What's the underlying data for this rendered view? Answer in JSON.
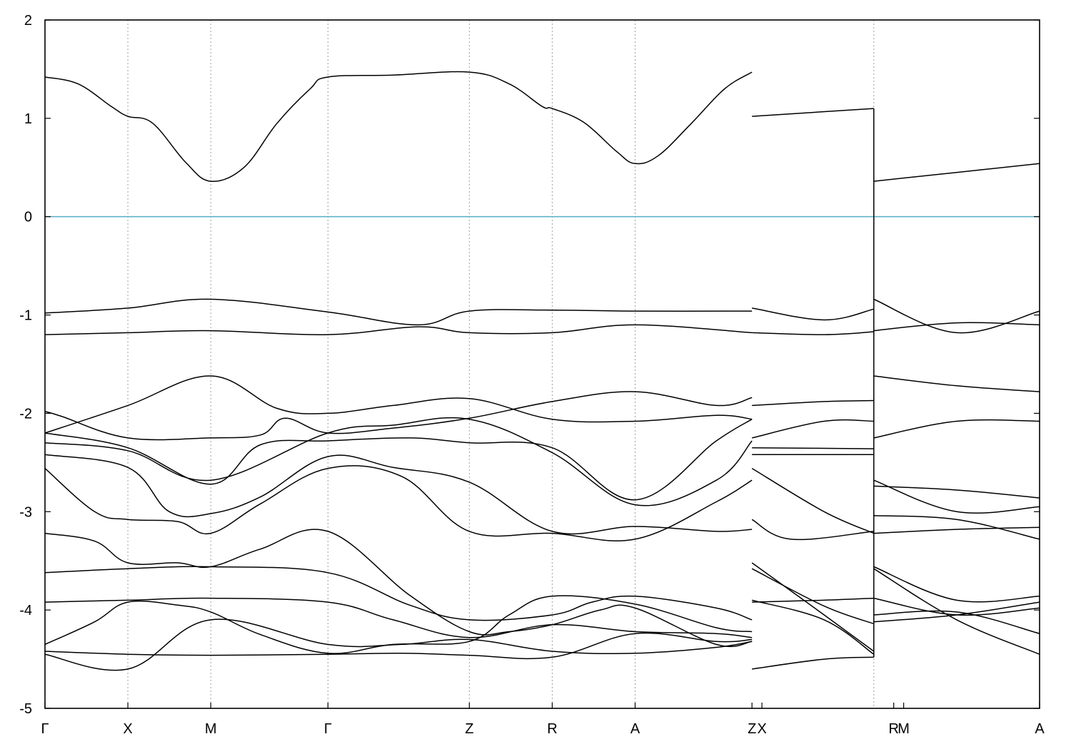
{
  "chart_data": {
    "type": "line",
    "title": "",
    "xlabel": "",
    "ylabel": "",
    "ylim": [
      -5,
      2
    ],
    "yticks": [
      2,
      1,
      0,
      -1,
      -2,
      -3,
      -4,
      -5
    ],
    "xlim": [
      0,
      12
    ],
    "segments": [
      [
        0,
        7
      ],
      [
        7,
        10
      ],
      [
        10,
        12
      ]
    ],
    "kpoints": [
      {
        "label": "Γ",
        "x": 0
      },
      {
        "label": "X",
        "x": 1
      },
      {
        "label": "M",
        "x": 2
      },
      {
        "label": "Γ",
        "x": 3.414
      },
      {
        "label": "Z",
        "x": 5.12
      },
      {
        "label": "R",
        "x": 6.12
      },
      {
        "label": "A",
        "x": 7.12
      },
      {
        "label": "Z",
        "x": 8.53
      },
      {
        "label": "X",
        "x": 8.65
      },
      {
        "label": "R",
        "x": 10.24
      },
      {
        "label": "M",
        "x": 10.36
      },
      {
        "label": "A",
        "x": 12
      }
    ],
    "grid_x": [
      1,
      2,
      3.414,
      5.12,
      6.12,
      7.12,
      10.0
    ],
    "fermi_level": 0,
    "fermi_color": "#5fb3c8",
    "line_color": "#000000",
    "series": [
      {
        "x": [
          0,
          0.4,
          0.8,
          1.0,
          1.3,
          1.7,
          2.0,
          2.4,
          2.8,
          3.2,
          3.414,
          4.2,
          5.12,
          5.6,
          6.0,
          6.12,
          6.5,
          6.9,
          7.12,
          7.4,
          7.8,
          8.2,
          8.53
        ],
        "y": [
          1.42,
          1.35,
          1.12,
          1.02,
          0.95,
          0.55,
          0.36,
          0.5,
          0.95,
          1.3,
          1.42,
          1.44,
          1.47,
          1.35,
          1.12,
          1.1,
          0.96,
          0.66,
          0.54,
          0.62,
          0.95,
          1.3,
          1.47
        ]
      },
      {
        "x": [
          8.53,
          10.0
        ],
        "y": [
          1.02,
          1.1
        ]
      },
      {
        "x": [
          10.0,
          11.0,
          12.0
        ],
        "y": [
          0.36,
          0.45,
          0.54
        ]
      },
      {
        "x": [
          0,
          1.0,
          2.0,
          3.414,
          4.5,
          5.12,
          6.12,
          7.12,
          8.53
        ],
        "y": [
          -0.98,
          -0.93,
          -0.84,
          -0.97,
          -1.1,
          -0.96,
          -0.95,
          -0.96,
          -0.96
        ]
      },
      {
        "x": [
          0,
          1.0,
          2.0,
          3.414,
          4.5,
          5.12,
          6.12,
          7.12,
          8.53
        ],
        "y": [
          -1.2,
          -1.18,
          -1.16,
          -1.2,
          -1.12,
          -1.18,
          -1.18,
          -1.1,
          -1.18
        ]
      },
      {
        "x": [
          8.53,
          9.4,
          10.0
        ],
        "y": [
          -0.93,
          -1.05,
          -0.94
        ]
      },
      {
        "x": [
          8.53,
          9.4,
          10.0
        ],
        "y": [
          -1.18,
          -1.2,
          -1.17
        ]
      },
      {
        "x": [
          10.0,
          11.0,
          12.0
        ],
        "y": [
          -0.84,
          -1.18,
          -0.96
        ]
      },
      {
        "x": [
          10.0,
          11.0,
          12.0
        ],
        "y": [
          -1.16,
          -1.08,
          -1.1
        ]
      },
      {
        "x": [
          0,
          1.0,
          2.0,
          2.8,
          3.414,
          4.2,
          5.12,
          6.12,
          7.12,
          8.1,
          8.53
        ],
        "y": [
          -2.2,
          -1.92,
          -1.62,
          -1.95,
          -2.0,
          -1.92,
          -1.85,
          -2.06,
          -2.08,
          -2.02,
          -2.06
        ]
      },
      {
        "x": [
          0,
          0.2,
          1.0,
          2.0,
          2.6,
          2.9,
          3.414,
          4.2,
          5.12,
          6.12,
          7.12,
          8.1,
          8.53
        ],
        "y": [
          -1.98,
          -2.03,
          -2.25,
          -2.25,
          -2.22,
          -2.05,
          -2.2,
          -2.15,
          -2.05,
          -1.88,
          -1.78,
          -1.92,
          -1.84
        ]
      },
      {
        "x": [
          0,
          1.0,
          2.0,
          2.6,
          3.414,
          4.4,
          5.12,
          6.12,
          7.12,
          8.1,
          8.53
        ],
        "y": [
          -2.2,
          -2.35,
          -2.72,
          -2.32,
          -2.28,
          -2.25,
          -2.3,
          -2.35,
          -2.88,
          -2.28,
          -2.06
        ]
      },
      {
        "x": [
          0,
          1.0,
          2.0,
          3.414,
          4.2,
          5.12,
          6.12,
          7.12,
          8.1,
          8.53
        ],
        "y": [
          -2.3,
          -2.38,
          -2.68,
          -2.2,
          -2.12,
          -2.06,
          -2.4,
          -2.93,
          -2.68,
          -2.28
        ]
      },
      {
        "x": [
          0,
          1.0,
          1.5,
          2.0,
          2.6,
          3.414,
          4.2,
          5.12,
          6.12,
          7.12,
          8.1,
          8.53
        ],
        "y": [
          -2.42,
          -2.55,
          -3.0,
          -3.02,
          -2.85,
          -2.44,
          -2.55,
          -2.7,
          -3.2,
          -3.15,
          -3.2,
          -3.18
        ]
      },
      {
        "x": [
          0,
          0.6,
          1.0,
          1.6,
          2.0,
          2.6,
          3.414,
          4.3,
          5.12,
          6.12,
          7.12,
          8.1,
          8.53
        ],
        "y": [
          -2.56,
          -3.0,
          -3.08,
          -3.1,
          -3.22,
          -2.92,
          -2.56,
          -2.64,
          -3.2,
          -3.22,
          -3.28,
          -2.9,
          -2.68
        ]
      },
      {
        "x": [
          8.53,
          9.4,
          10.0
        ],
        "y": [
          -1.92,
          -1.88,
          -1.87
        ]
      },
      {
        "x": [
          8.53,
          9.4,
          10.0
        ],
        "y": [
          -2.25,
          -2.08,
          -2.08
        ]
      },
      {
        "x": [
          8.53,
          10.0
        ],
        "y": [
          -2.35,
          -2.36
        ]
      },
      {
        "x": [
          8.53,
          10.0
        ],
        "y": [
          -2.42,
          -2.42
        ]
      },
      {
        "x": [
          8.53,
          9.4,
          10.0
        ],
        "y": [
          -2.56,
          -3.0,
          -3.22
        ]
      },
      {
        "x": [
          8.53,
          9.0,
          10.0
        ],
        "y": [
          -3.08,
          -3.28,
          -3.2
        ]
      },
      {
        "x": [
          10.0,
          11.0,
          12.0
        ],
        "y": [
          -1.62,
          -1.72,
          -1.78
        ]
      },
      {
        "x": [
          10.0,
          11.0,
          12.0
        ],
        "y": [
          -2.25,
          -2.08,
          -2.08
        ]
      },
      {
        "x": [
          10.0,
          11.0,
          12.0
        ],
        "y": [
          -2.68,
          -3.0,
          -2.95
        ]
      },
      {
        "x": [
          10.0,
          11.0,
          12.0
        ],
        "y": [
          -2.74,
          -2.78,
          -2.86
        ]
      },
      {
        "x": [
          10.0,
          11.0,
          12.0
        ],
        "y": [
          -3.04,
          -3.08,
          -3.28
        ]
      },
      {
        "x": [
          10.0,
          11.0,
          12.0
        ],
        "y": [
          -3.22,
          -3.18,
          -3.16
        ]
      },
      {
        "x": [
          0,
          0.6,
          1.0,
          1.6,
          2.0,
          2.6,
          3.414,
          4.4,
          5.12,
          5.6,
          6.12,
          6.7,
          7.12,
          8.1,
          8.53
        ],
        "y": [
          -3.22,
          -3.3,
          -3.52,
          -3.52,
          -3.56,
          -3.38,
          -3.2,
          -3.85,
          -4.22,
          -4.22,
          -4.15,
          -4.0,
          -3.98,
          -4.35,
          -4.32
        ]
      },
      {
        "x": [
          0,
          1.0,
          2.0,
          3.414,
          4.4,
          5.12,
          6.12,
          6.6,
          7.12,
          8.1,
          8.53
        ],
        "y": [
          -3.62,
          -3.58,
          -3.56,
          -3.62,
          -3.95,
          -4.1,
          -4.05,
          -3.92,
          -3.86,
          -3.98,
          -4.1
        ]
      },
      {
        "x": [
          0,
          1.0,
          2.0,
          3.414,
          4.2,
          5.12,
          6.12,
          7.12,
          8.1,
          8.53
        ],
        "y": [
          -3.92,
          -3.9,
          -3.88,
          -3.92,
          -4.1,
          -4.28,
          -4.15,
          -4.22,
          -4.24,
          -4.28
        ]
      },
      {
        "x": [
          0,
          0.6,
          1.0,
          1.6,
          2.0,
          2.6,
          3.414,
          4.2,
          5.12,
          5.6,
          6.12,
          7.12,
          8.1,
          8.53
        ],
        "y": [
          -4.35,
          -4.12,
          -3.92,
          -3.95,
          -4.02,
          -4.25,
          -4.44,
          -4.35,
          -4.32,
          -4.05,
          -3.86,
          -3.94,
          -4.18,
          -4.22
        ]
      },
      {
        "x": [
          0,
          1.0,
          2.0,
          3.414,
          4.3,
          5.12,
          6.12,
          7.12,
          8.1,
          8.53
        ],
        "y": [
          -4.45,
          -4.6,
          -4.1,
          -4.35,
          -4.35,
          -4.3,
          -4.42,
          -4.44,
          -4.38,
          -4.32
        ]
      },
      {
        "x": [
          0,
          1.0,
          2.0,
          3.414,
          4.3,
          5.12,
          6.12,
          7.12,
          8.1,
          8.53
        ],
        "y": [
          -4.42,
          -4.45,
          -4.46,
          -4.45,
          -4.44,
          -4.46,
          -4.48,
          -4.24,
          -4.32,
          -4.3
        ]
      },
      {
        "x": [
          8.53,
          9.4,
          10.0
        ],
        "y": [
          -3.52,
          -4.05,
          -4.42
        ]
      },
      {
        "x": [
          8.53,
          9.4,
          10.0
        ],
        "y": [
          -3.58,
          -3.96,
          -4.14
        ]
      },
      {
        "x": [
          8.53,
          9.4,
          10.0
        ],
        "y": [
          -3.9,
          -4.1,
          -4.45
        ]
      },
      {
        "x": [
          8.53,
          9.4,
          10.0
        ],
        "y": [
          -3.92,
          -3.9,
          -3.88
        ]
      },
      {
        "x": [
          8.53,
          9.4,
          10.0
        ],
        "y": [
          -4.6,
          -4.5,
          -4.48
        ]
      },
      {
        "x": [
          10.0,
          11.0,
          12.0
        ],
        "y": [
          -3.56,
          -3.9,
          -3.86
        ]
      },
      {
        "x": [
          10.0,
          11.0,
          12.0
        ],
        "y": [
          -3.58,
          -4.1,
          -4.45
        ]
      },
      {
        "x": [
          10.0,
          11.0,
          12.0
        ],
        "y": [
          -3.88,
          -4.05,
          -3.98
        ]
      },
      {
        "x": [
          10.0,
          11.0,
          12.0
        ],
        "y": [
          -4.05,
          -4.02,
          -4.24
        ]
      },
      {
        "x": [
          10.0,
          11.0,
          12.0
        ],
        "y": [
          -4.12,
          -4.05,
          -3.92
        ]
      }
    ]
  }
}
